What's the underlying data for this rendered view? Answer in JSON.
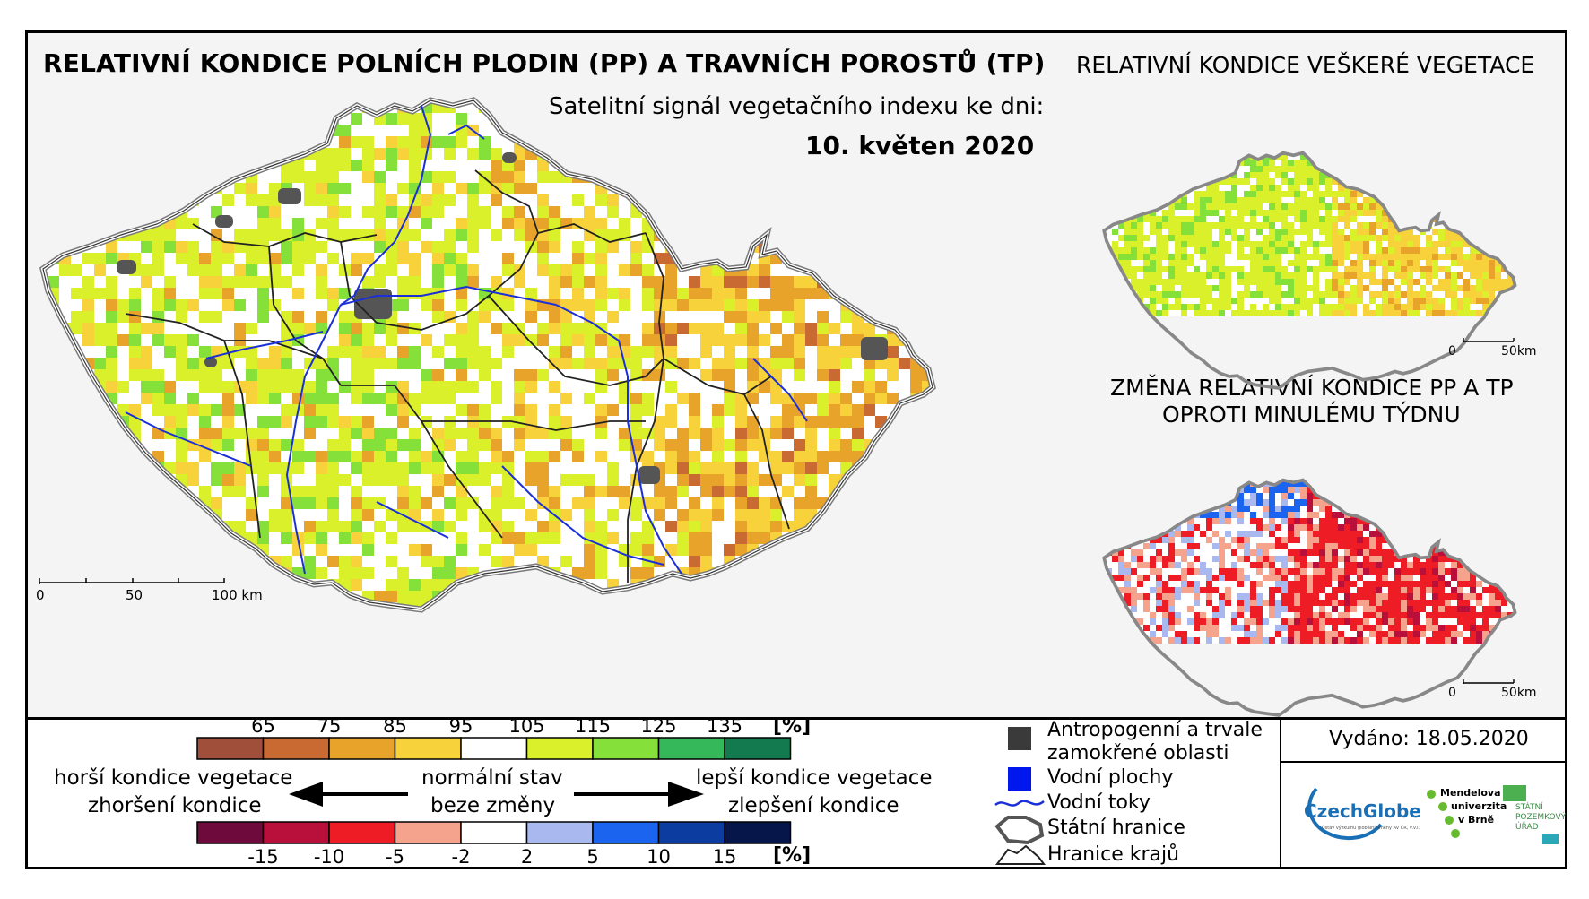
{
  "main_map": {
    "title": "RELATIVNÍ KONDICE POLNÍCH PLODIN (PP) A TRAVNÍCH POROSTŮ (TP)",
    "subtitle": "Satelitní signál vegetačního indexu ke dni:",
    "date": "10. květen 2020",
    "scale_labels": [
      "0",
      "50",
      "100 km"
    ]
  },
  "inset_top": {
    "title": "RELATIVNÍ KONDICE VEŠKERÉ VEGETACE",
    "scale_labels": [
      "0",
      "50km"
    ]
  },
  "inset_bottom": {
    "title_line1": "ZMĚNA RELATIVNÍ KONDICE PP A TP",
    "title_line2": "OPROTI MINULÉMU TÝDNU",
    "scale_labels": [
      "0",
      "50km"
    ]
  },
  "condition_scale": {
    "ticks": [
      "65",
      "75",
      "85",
      "95",
      "105",
      "115",
      "125",
      "135"
    ],
    "unit": "[%]",
    "colors": [
      "#a0503a",
      "#c96a32",
      "#e8a42a",
      "#f7d23a",
      "#ffffff",
      "#d9f02a",
      "#86e03a",
      "#34b85a",
      "#137a50"
    ]
  },
  "change_scale": {
    "ticks": [
      "-15",
      "-10",
      "-5",
      "-2",
      "2",
      "5",
      "10",
      "15"
    ],
    "unit": "[%]",
    "colors": [
      "#6e0a3c",
      "#b8103a",
      "#ee1c24",
      "#f5a38d",
      "#ffffff",
      "#a9b8ef",
      "#1a64f0",
      "#0c3ca0",
      "#06164a"
    ]
  },
  "arrows": {
    "left_line1": "horší kondice vegetace",
    "left_line2": "zhoršení kondice",
    "center_line1": "normální stav",
    "center_line2": "beze změny",
    "right_line1": "lepší kondice vegetace",
    "right_line2": "zlepšení kondice"
  },
  "symbols": {
    "anthropogenic_line1": "Antropogenní a trvale",
    "anthropogenic_line2": "zamokřené oblasti",
    "water_bodies": "Vodní plochy",
    "rivers": "Vodní toky",
    "state_border": "Státní hranice",
    "regions": "Hranice krajů"
  },
  "issued": "Vydáno: 18.05.2020",
  "logos": {
    "czechglobe": "CzechGlobe",
    "czechglobe_sub": "Ústav výzkumu globální změny AV ČR, v.v.i.",
    "mendel_1": "Mendelova",
    "mendel_2": "univerzita",
    "mendel_3": "v Brně",
    "spu_1": "STÁTNÍ",
    "spu_2": "POZEMKOVÝ",
    "spu_3": "ÚŘAD"
  }
}
